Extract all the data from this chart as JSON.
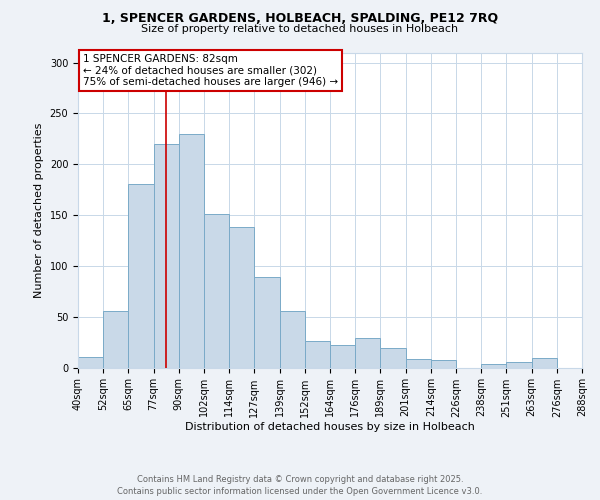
{
  "title_line1": "1, SPENCER GARDENS, HOLBEACH, SPALDING, PE12 7RQ",
  "title_line2": "Size of property relative to detached houses in Holbeach",
  "xlabel": "Distribution of detached houses by size in Holbeach",
  "ylabel": "Number of detached properties",
  "bar_labels": [
    "40sqm",
    "52sqm",
    "65sqm",
    "77sqm",
    "90sqm",
    "102sqm",
    "114sqm",
    "127sqm",
    "139sqm",
    "152sqm",
    "164sqm",
    "176sqm",
    "189sqm",
    "201sqm",
    "214sqm",
    "226sqm",
    "238sqm",
    "251sqm",
    "263sqm",
    "276sqm",
    "288sqm"
  ],
  "bar_values": [
    10,
    56,
    181,
    220,
    230,
    151,
    138,
    89,
    56,
    26,
    22,
    29,
    19,
    8,
    7,
    0,
    3,
    5,
    9,
    0
  ],
  "bar_color": "#c9d9e8",
  "bar_edgecolor": "#7aaac8",
  "vline_x": 3.5,
  "vline_color": "#cc0000",
  "annotation_text": "1 SPENCER GARDENS: 82sqm\n← 24% of detached houses are smaller (302)\n75% of semi-detached houses are larger (946) →",
  "annotation_box_color": "#ffffff",
  "annotation_box_edgecolor": "#cc0000",
  "ylim": [
    0,
    310
  ],
  "yticks": [
    0,
    50,
    100,
    150,
    200,
    250,
    300
  ],
  "footer_line1": "Contains HM Land Registry data © Crown copyright and database right 2025.",
  "footer_line2": "Contains public sector information licensed under the Open Government Licence v3.0.",
  "background_color": "#eef2f7",
  "plot_background_color": "#ffffff",
  "grid_color": "#c8d8e8",
  "title_fontsize": 9,
  "subtitle_fontsize": 8,
  "axis_label_fontsize": 8,
  "tick_fontsize": 7,
  "annotation_fontsize": 7.5,
  "footer_fontsize": 6
}
